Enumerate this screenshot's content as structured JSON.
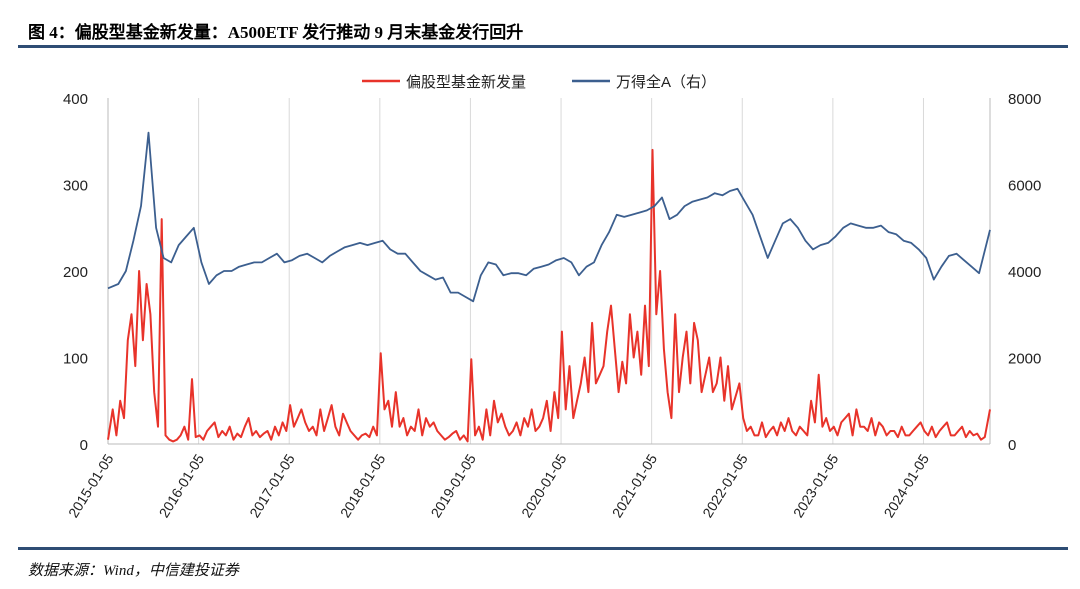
{
  "header": {
    "title": "图 4：偏股型基金新发量：A500ETF 发行推动 9 月末基金发行回升"
  },
  "footer": {
    "source": "数据来源：Wind，中信建投证券"
  },
  "chart_data": {
    "type": "line",
    "title": "偏股型基金新发量：A500ETF 发行推动 9 月末基金发行回升",
    "legend_position": "top-center",
    "grid": "vertical",
    "x_range": [
      "2015-01-05",
      "2024-09-30"
    ],
    "x_ticks": [
      "2015-01-05",
      "2016-01-05",
      "2017-01-05",
      "2018-01-05",
      "2019-01-05",
      "2020-01-05",
      "2021-01-05",
      "2022-01-05",
      "2023-01-05",
      "2024-01-05"
    ],
    "y_left": {
      "ticks": [
        "0",
        "100",
        "200",
        "300",
        "400"
      ],
      "range": [
        0,
        400
      ]
    },
    "y_right": {
      "ticks": [
        "0",
        "2000",
        "4000",
        "6000",
        "8000"
      ],
      "range": [
        0,
        8000
      ]
    },
    "series": [
      {
        "name": "偏股型基金新发量",
        "axis": "left",
        "color": "#e8332a",
        "frequency": "semi-monthly",
        "start": "2015-01",
        "values": [
          5,
          40,
          10,
          50,
          30,
          120,
          150,
          90,
          200,
          120,
          185,
          150,
          60,
          20,
          260,
          10,
          5,
          3,
          5,
          10,
          20,
          5,
          75,
          8,
          10,
          5,
          15,
          20,
          25,
          8,
          15,
          10,
          20,
          5,
          12,
          8,
          20,
          30,
          10,
          15,
          8,
          12,
          15,
          5,
          20,
          10,
          25,
          15,
          45,
          20,
          30,
          40,
          25,
          15,
          20,
          10,
          40,
          15,
          30,
          45,
          20,
          10,
          35,
          25,
          15,
          10,
          5,
          10,
          12,
          8,
          20,
          10,
          105,
          40,
          50,
          20,
          60,
          20,
          30,
          10,
          20,
          15,
          40,
          10,
          30,
          20,
          25,
          15,
          10,
          5,
          8,
          12,
          15,
          5,
          10,
          3,
          98,
          10,
          20,
          5,
          40,
          10,
          50,
          25,
          35,
          20,
          10,
          15,
          25,
          10,
          30,
          20,
          40,
          15,
          20,
          30,
          50,
          15,
          60,
          30,
          130,
          40,
          90,
          30,
          50,
          70,
          100,
          60,
          140,
          70,
          80,
          90,
          130,
          160,
          110,
          60,
          95,
          70,
          150,
          100,
          130,
          80,
          160,
          90,
          340,
          150,
          200,
          110,
          60,
          30,
          150,
          60,
          100,
          130,
          70,
          140,
          120,
          60,
          80,
          100,
          60,
          70,
          100,
          50,
          90,
          40,
          55,
          70,
          30,
          15,
          20,
          10,
          10,
          25,
          8,
          15,
          20,
          10,
          25,
          15,
          30,
          15,
          10,
          20,
          15,
          10,
          50,
          25,
          80,
          20,
          30,
          15,
          20,
          10,
          25,
          30,
          35,
          10,
          40,
          20,
          20,
          15,
          30,
          10,
          25,
          20,
          10,
          15,
          15,
          8,
          20,
          10,
          10,
          15,
          20,
          25,
          15,
          10,
          20,
          8,
          15,
          20,
          25,
          10,
          10,
          15,
          20,
          8,
          15,
          10,
          12,
          5,
          8,
          40
        ]
      },
      {
        "name": "万得全A（右）",
        "axis": "right",
        "color": "#3c5f8f",
        "frequency": "monthly",
        "start": "2015-01",
        "values": [
          3600,
          3700,
          4000,
          4700,
          5500,
          7200,
          5000,
          4300,
          4200,
          4600,
          4800,
          5000,
          4200,
          3700,
          3900,
          4000,
          4000,
          4100,
          4150,
          4200,
          4200,
          4300,
          4400,
          4200,
          4250,
          4350,
          4400,
          4300,
          4200,
          4350,
          4450,
          4550,
          4600,
          4650,
          4600,
          4650,
          4700,
          4500,
          4400,
          4400,
          4200,
          4000,
          3900,
          3800,
          3850,
          3500,
          3500,
          3400,
          3300,
          3900,
          4200,
          4150,
          3900,
          3950,
          3950,
          3900,
          4050,
          4100,
          4150,
          4250,
          4300,
          4200,
          3900,
          4100,
          4200,
          4600,
          4900,
          5300,
          5250,
          5300,
          5350,
          5400,
          5500,
          5700,
          5200,
          5300,
          5500,
          5600,
          5650,
          5700,
          5800,
          5750,
          5850,
          5900,
          5600,
          5300,
          4800,
          4300,
          4700,
          5100,
          5200,
          5000,
          4700,
          4500,
          4600,
          4650,
          4800,
          5000,
          5100,
          5050,
          5000,
          5000,
          5050,
          4900,
          4850,
          4700,
          4650,
          4500,
          4300,
          3800,
          4100,
          4350,
          4400,
          4250,
          4100,
          3950,
          4950
        ]
      }
    ]
  }
}
